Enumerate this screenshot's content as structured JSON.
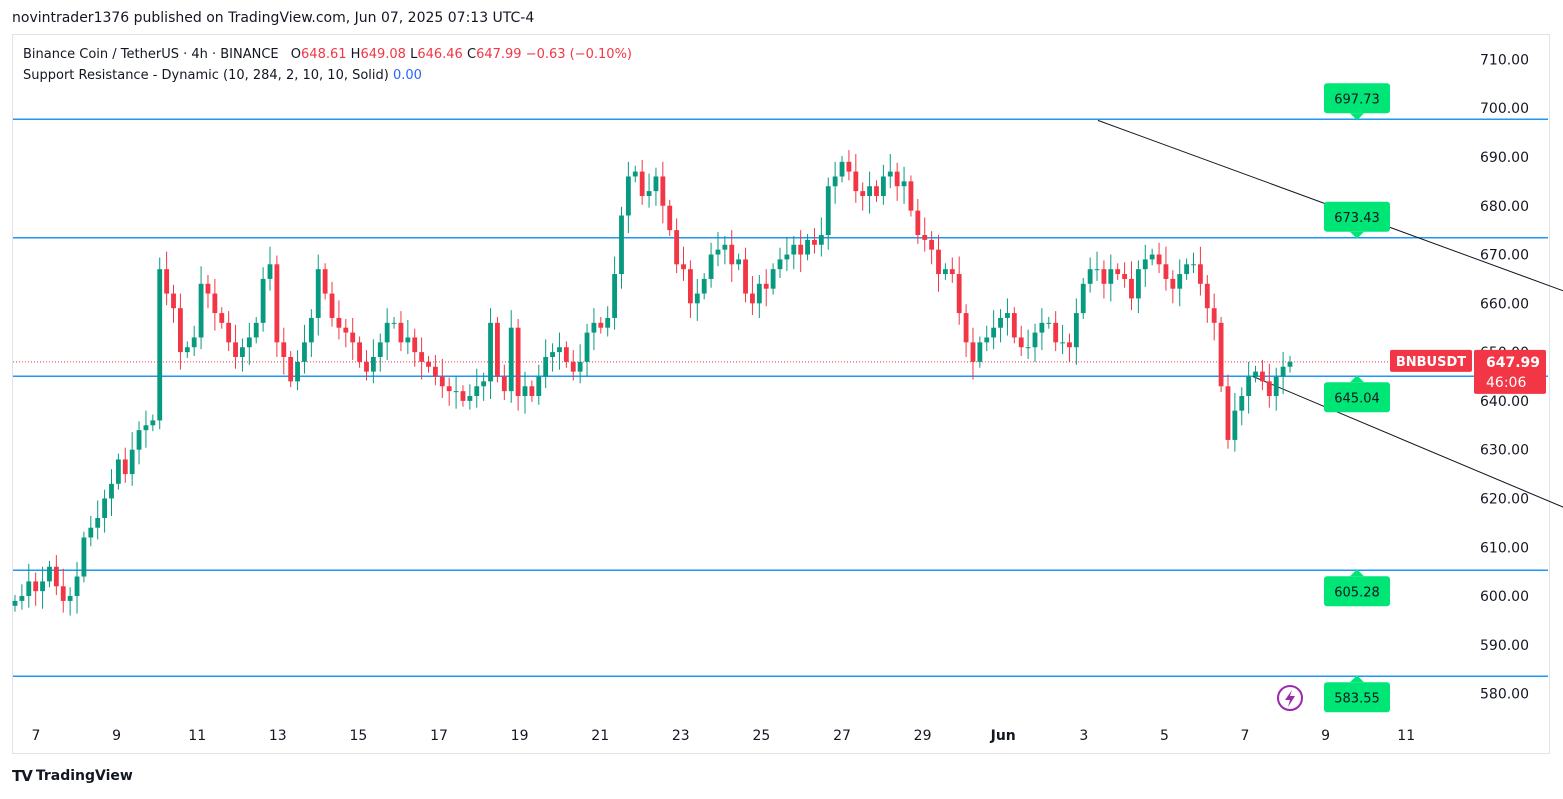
{
  "header": {
    "publisher_line": "novintrader1376 published on TradingView.com, Jun 07, 2025 07:13 UTC-4"
  },
  "legend": {
    "symbol_line": "Binance Coin / TetherUS · 4h · BINANCE",
    "open_label": "O",
    "open": "648.61",
    "high_label": "H",
    "high": "649.08",
    "low_label": "L",
    "low": "646.46",
    "close_label": "C",
    "close": "647.99",
    "change": "−0.63 (−0.10%)",
    "indicator": "Support Resistance - Dynamic (10, 284, 2, 10, 10, Solid)",
    "indicator_value": "0.00"
  },
  "footer": {
    "logo": "TV",
    "brand": "TradingView"
  },
  "colors": {
    "up": "#089981",
    "down": "#f23645",
    "level": "#2196f3",
    "label": "#00e676",
    "trend": "#131722"
  },
  "chart_data": {
    "type": "candlestick",
    "symbol": "BNBUSDT",
    "price_tag": "647.99",
    "countdown": "46:06",
    "ylim": [
      575,
      715
    ],
    "yticks": [
      "710.00",
      "700.00",
      "690.00",
      "680.00",
      "670.00",
      "660.00",
      "650.00",
      "640.00",
      "630.00",
      "620.00",
      "610.00",
      "600.00",
      "590.00",
      "580.00"
    ],
    "xticks": [
      "7",
      "9",
      "11",
      "13",
      "15",
      "17",
      "19",
      "21",
      "23",
      "25",
      "27",
      "29",
      "Jun",
      "3",
      "5",
      "7",
      "9",
      "11"
    ],
    "levels": [
      {
        "value": 697.73,
        "label": "697.73"
      },
      {
        "value": 673.43,
        "label": "673.43"
      },
      {
        "value": 645.04,
        "label": "645.04"
      },
      {
        "value": 605.28,
        "label": "605.28"
      },
      {
        "value": 583.55,
        "label": "583.55"
      }
    ],
    "trendlines": [
      {
        "x": [
          27.35,
          40.9
        ],
        "y": [
          697.5,
          656.5
        ]
      },
      {
        "x": [
          31.2,
          41.4
        ],
        "y": [
          645.0,
          609.5
        ]
      }
    ],
    "closes": [
      599,
      600,
      603,
      601,
      603,
      606,
      602,
      599,
      600,
      604,
      612,
      614,
      616,
      620,
      623,
      628,
      625,
      630,
      634,
      635,
      636,
      667,
      662,
      659,
      650,
      651,
      653,
      664,
      662,
      658,
      656,
      652,
      649,
      651,
      653,
      656,
      665,
      668,
      652,
      649,
      644,
      648,
      652,
      657,
      667,
      662,
      657,
      655,
      654,
      652,
      648,
      646,
      649,
      652,
      656,
      656,
      652,
      653,
      650,
      648,
      647,
      645,
      643,
      642,
      642,
      640,
      641,
      643,
      644,
      656,
      645,
      642,
      655,
      641,
      643,
      641,
      645,
      649,
      650,
      651,
      648,
      646,
      648,
      654,
      656,
      655,
      657,
      666,
      678,
      686,
      687,
      682,
      683,
      686,
      680,
      675,
      668,
      667,
      660,
      662,
      665,
      670,
      671,
      672,
      668,
      669,
      662,
      660,
      664,
      663,
      667,
      669,
      670,
      672,
      670,
      673,
      672,
      674,
      684,
      686,
      689,
      687,
      683,
      682,
      684,
      682,
      686,
      687,
      684,
      685,
      679,
      674,
      673,
      671,
      666,
      667,
      666,
      658,
      652,
      648,
      652,
      653,
      655,
      657,
      658,
      653,
      651,
      651,
      654,
      656,
      656,
      652,
      652,
      651,
      658,
      664,
      667,
      667,
      664,
      667,
      666,
      665,
      661,
      667,
      669,
      670,
      668,
      665,
      663,
      666,
      668,
      668,
      664,
      659,
      656,
      643,
      632,
      638,
      641,
      645,
      646,
      644,
      641,
      645,
      647,
      647.99
    ],
    "current_index": 185
  }
}
